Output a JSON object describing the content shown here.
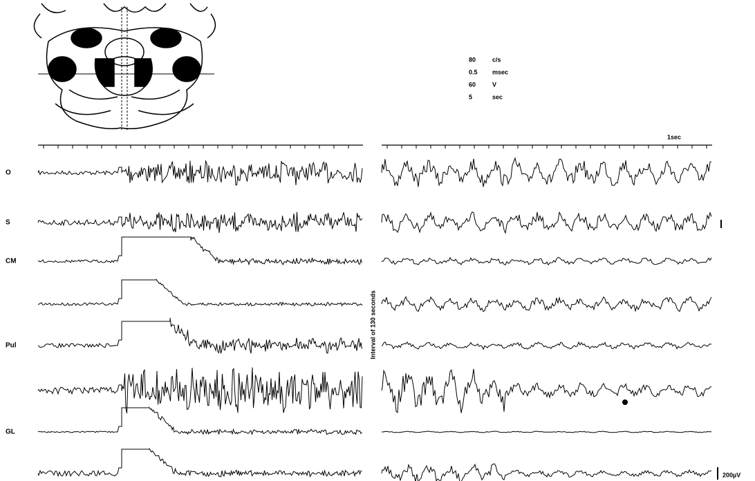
{
  "stimulus": {
    "parameters": [
      {
        "value": "80",
        "unit": "c/s"
      },
      {
        "value": "0.5",
        "unit": "msec"
      },
      {
        "value": "60",
        "unit": "V"
      },
      {
        "value": "5",
        "unit": "sec"
      }
    ]
  },
  "time_scale": "1sec",
  "interval_label": "Interval of 130 seconds",
  "amplitude_scale": "200µV",
  "channels": [
    "O",
    "S",
    "CM",
    "Pul",
    "GL"
  ]
}
